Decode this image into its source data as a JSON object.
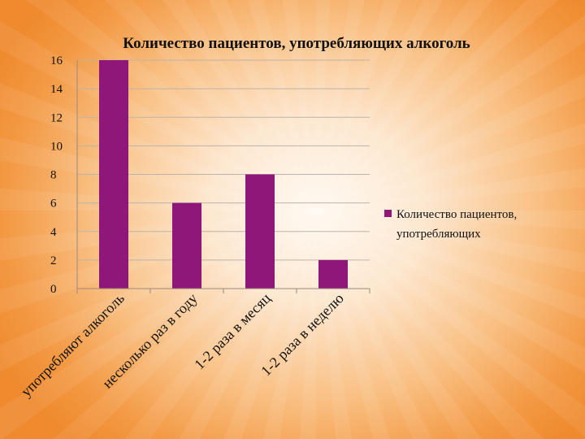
{
  "chart_data": {
    "type": "bar",
    "title": "Количество пациентов, употребляющих алкоголь",
    "categories": [
      "употребляют алкоголь",
      "несколько раз в году",
      "1-2 раза в месяц",
      "1-2 раза в неделю"
    ],
    "series": [
      {
        "name": "Количество пациентов, употребляющих",
        "values": [
          16,
          6,
          8,
          2
        ]
      }
    ],
    "ylim": [
      0,
      16
    ],
    "yticks": [
      0,
      2,
      4,
      6,
      8,
      10,
      12,
      14,
      16
    ],
    "grid": true,
    "legend_position": "right",
    "colors": {
      "bar": "#8e1779",
      "axis": "#9a8a7a",
      "grid": "#bdb3aa",
      "text": "#111111"
    }
  }
}
